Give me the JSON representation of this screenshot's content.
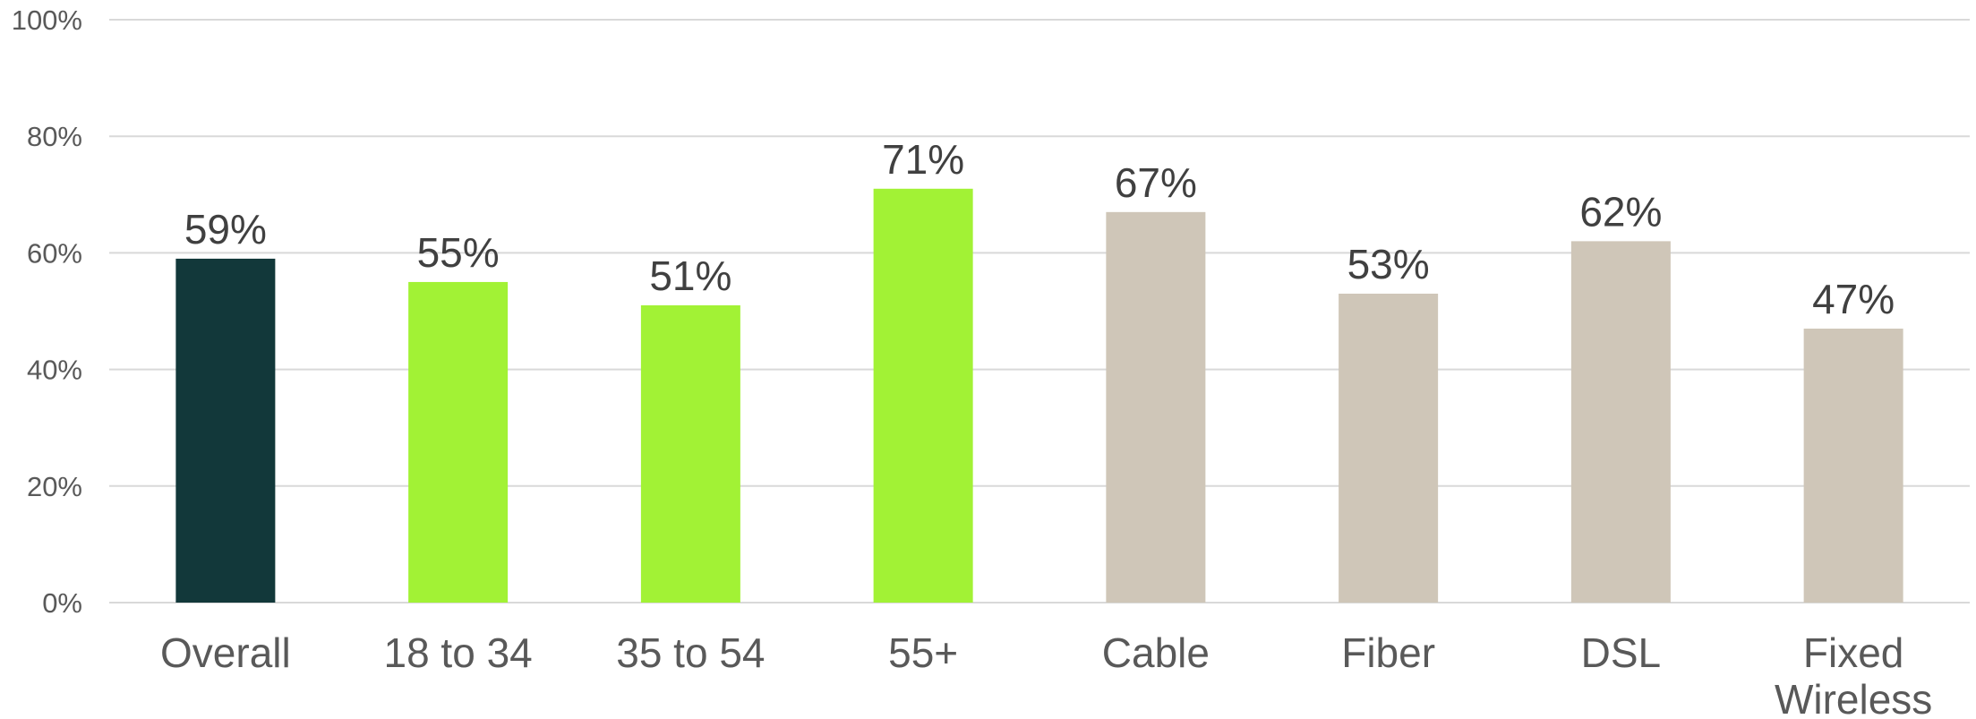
{
  "chart_data": {
    "type": "bar",
    "title": "",
    "xlabel": "",
    "ylabel": "",
    "categories": [
      "Overall",
      "18 to 34",
      "35 to 54",
      "55+",
      "Cable",
      "Fiber",
      "DSL",
      "Fixed Wireless"
    ],
    "category_lines": [
      [
        "Overall"
      ],
      [
        "18 to 34"
      ],
      [
        "35 to 54"
      ],
      [
        "55+"
      ],
      [
        "Cable"
      ],
      [
        "Fiber"
      ],
      [
        "DSL"
      ],
      [
        "Fixed",
        "Wireless"
      ]
    ],
    "values": [
      59,
      55,
      51,
      71,
      67,
      53,
      62,
      47
    ],
    "data_labels": [
      "59%",
      "55%",
      "51%",
      "71%",
      "67%",
      "53%",
      "62%",
      "47%"
    ],
    "bar_colors": [
      "#12383a",
      "#a2f235",
      "#a2f235",
      "#a2f235",
      "#cfc6b8",
      "#cfc6b8",
      "#cfc6b8",
      "#cfc6b8"
    ],
    "ylim": [
      0,
      100
    ],
    "yticks": [
      0,
      20,
      40,
      60,
      80,
      100
    ],
    "ytick_labels": [
      "0%",
      "20%",
      "40%",
      "60%",
      "80%",
      "100%"
    ],
    "grid": true,
    "legend": "none"
  }
}
